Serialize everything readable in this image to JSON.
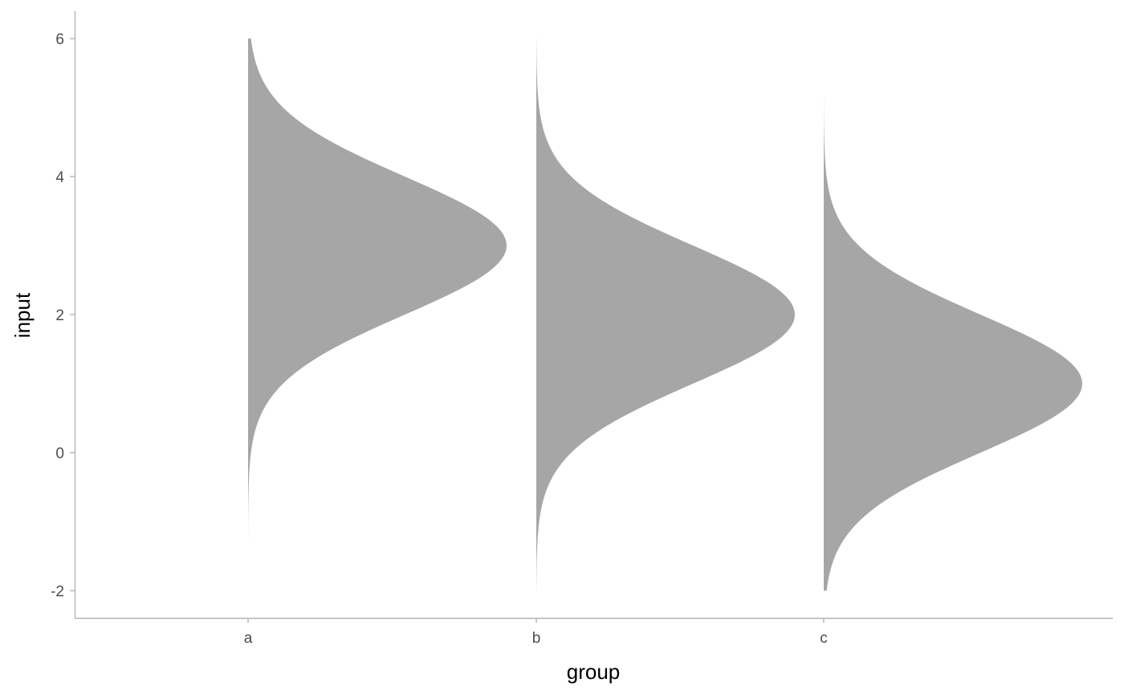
{
  "chart_data": {
    "type": "area",
    "subtype": "half-violin",
    "title": "",
    "xlabel": "group",
    "ylabel": "input",
    "categories": [
      "a",
      "b",
      "c"
    ],
    "ylim": [
      -2.4,
      6.4
    ],
    "yticks": [
      6,
      4,
      2,
      0,
      -2
    ],
    "ytick_labels": [
      "6",
      "4",
      "2",
      "0",
      "-2"
    ],
    "fill_color": "#a6a6a6",
    "axis_color": "#b3b3b3",
    "grid": false,
    "legend": "none",
    "series": [
      {
        "category": "a",
        "mean": 3,
        "sd": 1,
        "min": -1.3,
        "max": 6
      },
      {
        "category": "b",
        "mean": 2,
        "sd": 1,
        "min": -2,
        "max": 6
      },
      {
        "category": "c",
        "mean": 1,
        "sd": 1,
        "min": -2,
        "max": 5.2
      }
    ]
  }
}
